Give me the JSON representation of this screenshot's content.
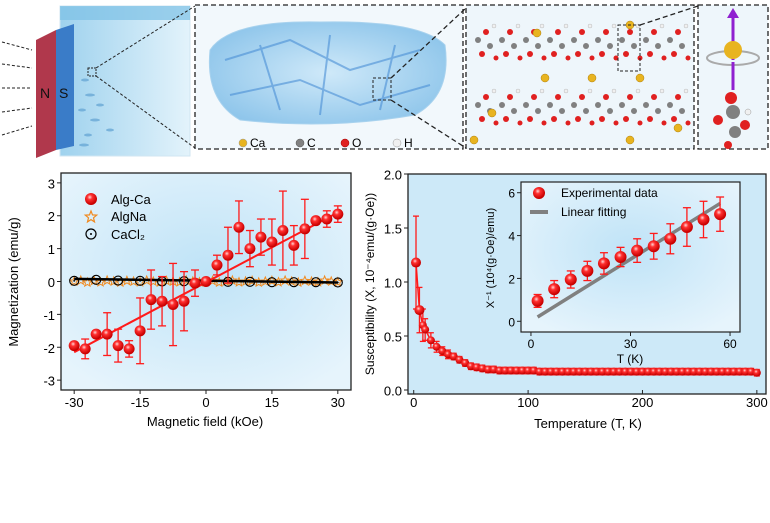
{
  "illustration": {
    "magnet_labels": [
      "N",
      "S"
    ],
    "atom_legend": [
      {
        "label": "Ca",
        "color": "#e8b420"
      },
      {
        "label": "C",
        "color": "#808080"
      },
      {
        "label": "O",
        "color": "#e02020"
      },
      {
        "label": "H",
        "color": "#f0f0f0"
      }
    ]
  },
  "chart_data": [
    {
      "type": "scatter",
      "xlabel": "Magnetic field (kOe)",
      "ylabel": "Magnetization (emu/g)",
      "xlim": [
        -33,
        33
      ],
      "ylim": [
        -3.3,
        3.3
      ],
      "xticks": [
        -30,
        -15,
        0,
        15,
        30
      ],
      "yticks": [
        3,
        2,
        1,
        0,
        -1,
        -2,
        -3
      ],
      "legend_position": "top-left",
      "series": [
        {
          "name": "Alg-Ca",
          "color": "#ff1a1a",
          "marker": "sphere",
          "x": [
            -30,
            -27.5,
            -25,
            -22.5,
            -20,
            -17.5,
            -15,
            -12.5,
            -10,
            -7.5,
            -5,
            -2.5,
            0,
            2.5,
            5,
            7.5,
            10,
            12.5,
            15,
            17.5,
            20,
            22.5,
            25,
            27.5,
            30
          ],
          "y": [
            -1.95,
            -2.05,
            -1.6,
            -1.6,
            -1.95,
            -2.05,
            -1.5,
            -0.55,
            -0.6,
            -0.7,
            -0.6,
            -0.05,
            0,
            0.5,
            0.8,
            1.65,
            1.0,
            1.35,
            1.2,
            1.55,
            1.1,
            1.6,
            1.85,
            1.9,
            2.05
          ],
          "err": [
            0.1,
            0.3,
            0.1,
            0.65,
            0.5,
            0.25,
            1.0,
            0.9,
            0.75,
            1.25,
            0.9,
            0.4,
            0.1,
            0.3,
            0.85,
            0.8,
            0.55,
            0.55,
            0.7,
            1.2,
            0.6,
            0.9,
            0.1,
            0.25,
            0.25
          ],
          "fit": {
            "x": [
              -30,
              30
            ],
            "y": [
              -2.15,
              2.1
            ]
          }
        },
        {
          "name": "AlgNa",
          "color": "#f08a20",
          "marker": "star",
          "x": [
            -30,
            -28.5,
            -27,
            -25.5,
            -24,
            -22.5,
            -21,
            -19.5,
            -18,
            -16.5,
            -15,
            -13.5,
            -12,
            -10.5,
            -9,
            -7.5,
            -6,
            -4.5,
            -3,
            -1.5,
            0,
            1.5,
            3,
            4.5,
            6,
            7.5,
            9,
            10.5,
            12,
            13.5,
            15,
            16.5,
            18,
            19.5,
            21,
            22.5,
            24,
            25.5,
            27,
            28.5,
            30
          ],
          "y": [
            0,
            0.03,
            -0.03,
            0.02,
            -0.02,
            0.03,
            0,
            -0.03,
            0.02,
            0,
            -0.02,
            0.03,
            0,
            -0.03,
            0.02,
            0,
            -0.02,
            0.03,
            0,
            -0.02,
            0,
            0.02,
            -0.03,
            0,
            0.03,
            -0.02,
            0,
            0.02,
            -0.03,
            0,
            0.02,
            -0.02,
            0.03,
            0,
            -0.03,
            0.02,
            0,
            -0.02,
            0.03,
            0,
            -0.02
          ]
        },
        {
          "name": "CaCl₂",
          "color": "#000000",
          "marker": "open-circle-dot",
          "x": [
            -30,
            -25,
            -20,
            -15,
            -10,
            -5,
            0,
            5,
            10,
            15,
            20,
            25,
            30
          ],
          "y": [
            0.02,
            0.05,
            0.03,
            0.02,
            0,
            0.01,
            0,
            -0.01,
            -0.01,
            -0.02,
            -0.02,
            -0.02,
            -0.03
          ],
          "fit": {
            "x": [
              -30,
              30
            ],
            "y": [
              0.08,
              -0.03
            ]
          }
        }
      ]
    },
    {
      "type": "scatter",
      "xlabel": "Temperature (T, K)",
      "ylabel": "Susceptibility (X, 10⁻⁴emu/(g·Oe))",
      "xlim": [
        -5,
        308
      ],
      "ylim": [
        0,
        2.0
      ],
      "xticks": [
        0,
        100,
        200,
        300
      ],
      "yticks": [
        0.0,
        0.5,
        1.0,
        1.5,
        2.0
      ],
      "series": [
        {
          "color": "#ff1a1a",
          "x": [
            2,
            5,
            8,
            10,
            15,
            20,
            25,
            30,
            35,
            40,
            45,
            50,
            55,
            60,
            65,
            70,
            75,
            80,
            85,
            90,
            95,
            100,
            105,
            110,
            115,
            120,
            125,
            130,
            135,
            140,
            145,
            150,
            155,
            160,
            165,
            170,
            175,
            180,
            185,
            190,
            195,
            200,
            205,
            210,
            215,
            220,
            225,
            230,
            235,
            240,
            245,
            250,
            255,
            260,
            265,
            270,
            275,
            280,
            285,
            290,
            295,
            300
          ],
          "y": [
            1.18,
            0.74,
            0.6,
            0.56,
            0.46,
            0.4,
            0.36,
            0.33,
            0.31,
            0.28,
            0.25,
            0.22,
            0.21,
            0.2,
            0.19,
            0.19,
            0.18,
            0.18,
            0.18,
            0.18,
            0.18,
            0.18,
            0.18,
            0.17,
            0.17,
            0.17,
            0.17,
            0.17,
            0.17,
            0.17,
            0.17,
            0.17,
            0.17,
            0.17,
            0.17,
            0.17,
            0.17,
            0.17,
            0.17,
            0.17,
            0.17,
            0.17,
            0.17,
            0.17,
            0.17,
            0.17,
            0.17,
            0.17,
            0.17,
            0.17,
            0.17,
            0.17,
            0.17,
            0.17,
            0.17,
            0.17,
            0.17,
            0.17,
            0.17,
            0.17,
            0.17,
            0.16
          ],
          "err": [
            0.43,
            0.21,
            0.15,
            0.1,
            0.07,
            0.05,
            0.04,
            0.04,
            0.03,
            0.03,
            0.03,
            0.03,
            0.03,
            0.03,
            0.03,
            0.03,
            0.03,
            0.03,
            0.03,
            0.03,
            0.03,
            0.03,
            0.03,
            0.03,
            0.03,
            0.03,
            0.03,
            0.03,
            0.03,
            0.03,
            0.03,
            0.03,
            0.03,
            0.03,
            0.03,
            0.03,
            0.03,
            0.03,
            0.03,
            0.03,
            0.03,
            0.03,
            0.03,
            0.03,
            0.03,
            0.03,
            0.03,
            0.03,
            0.03,
            0.03,
            0.03,
            0.03,
            0.03,
            0.03,
            0.03,
            0.03,
            0.03,
            0.03,
            0.03,
            0.03,
            0.03,
            0.03
          ]
        }
      ],
      "inset": {
        "type": "scatter",
        "xlabel": "T (K)",
        "ylabel": "X⁻¹ (10⁴(g·Oe)/emu)",
        "xlim": [
          -3,
          63
        ],
        "ylim": [
          -0.5,
          6.5
        ],
        "xticks": [
          0,
          30,
          60
        ],
        "yticks": [
          0,
          2,
          4,
          6
        ],
        "legend_position": "top-left",
        "series": [
          {
            "name": "Experimental data",
            "color": "#ff1a1a",
            "x": [
              2,
              7,
              12,
              17,
              22,
              27,
              32,
              37,
              42,
              47,
              52,
              57
            ],
            "y": [
              0.95,
              1.5,
              1.95,
              2.35,
              2.7,
              3.0,
              3.3,
              3.5,
              3.85,
              4.4,
              4.75,
              5.0
            ],
            "err": [
              0.3,
              0.4,
              0.4,
              0.45,
              0.5,
              0.45,
              0.55,
              0.6,
              0.7,
              0.9,
              0.85,
              0.8
            ]
          },
          {
            "name": "Linear fitting",
            "color": "#808080",
            "x": [
              2,
              57
            ],
            "y": [
              0.2,
              5.5
            ]
          }
        ]
      }
    }
  ]
}
